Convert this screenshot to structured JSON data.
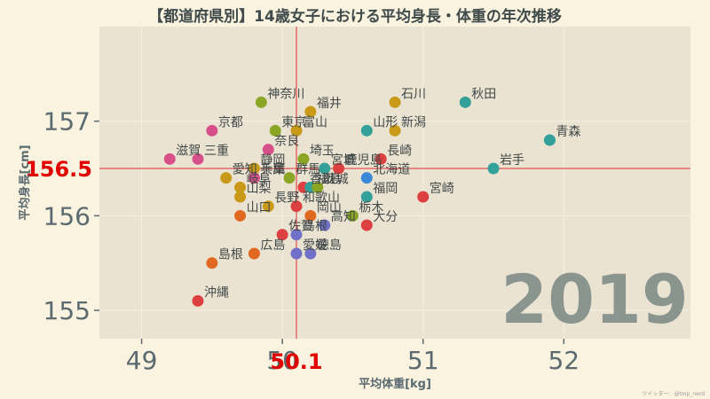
{
  "chart_data": {
    "type": "scatter",
    "title": "【都道府県別】14歳女子における平均身長・体重の年次推移",
    "xlabel": "平均体重[kg]",
    "ylabel": "平均身長[cm]",
    "year": "2019",
    "xlim": [
      48.7,
      52.9
    ],
    "ylim": [
      154.7,
      158.0
    ],
    "x_ticks": [
      49,
      50,
      51,
      52
    ],
    "y_ticks": [
      155,
      156,
      157
    ],
    "reference": {
      "x": 50.1,
      "x_label": "50.1",
      "y": 156.5,
      "y_label": "156.5"
    },
    "points": [
      {
        "name": "神奈川",
        "x": 49.85,
        "y": 157.2,
        "color": "#8aa624"
      },
      {
        "name": "石川",
        "x": 50.8,
        "y": 157.2,
        "color": "#c89a18"
      },
      {
        "name": "秋田",
        "x": 51.3,
        "y": 157.2,
        "color": "#33a09a"
      },
      {
        "name": "福井",
        "x": 50.2,
        "y": 157.1,
        "color": "#c89a18"
      },
      {
        "name": "京都",
        "x": 49.5,
        "y": 156.9,
        "color": "#d8508a"
      },
      {
        "name": "東京",
        "x": 49.95,
        "y": 156.9,
        "color": "#8aa624"
      },
      {
        "name": "富山",
        "x": 50.1,
        "y": 156.9,
        "color": "#c89a18"
      },
      {
        "name": "山形",
        "x": 50.6,
        "y": 156.9,
        "color": "#33a09a"
      },
      {
        "name": "新潟",
        "x": 50.8,
        "y": 156.9,
        "color": "#c89a18"
      },
      {
        "name": "青森",
        "x": 51.9,
        "y": 156.8,
        "color": "#33a09a"
      },
      {
        "name": "奈良",
        "x": 49.9,
        "y": 156.7,
        "color": "#d8508a"
      },
      {
        "name": "滋賀",
        "x": 49.2,
        "y": 156.6,
        "color": "#d8508a"
      },
      {
        "name": "三重",
        "x": 49.4,
        "y": 156.6,
        "color": "#d8508a"
      },
      {
        "name": "埼玉",
        "x": 50.15,
        "y": 156.6,
        "color": "#8aa624"
      },
      {
        "name": "長崎",
        "x": 50.7,
        "y": 156.6,
        "color": "#dc4040"
      },
      {
        "name": "静岡",
        "x": 49.8,
        "y": 156.5,
        "color": "#c89a18"
      },
      {
        "name": "宮城",
        "x": 50.3,
        "y": 156.5,
        "color": "#33a09a"
      },
      {
        "name": "鹿児島",
        "x": 50.4,
        "y": 156.5,
        "color": "#dc4040"
      },
      {
        "name": "岩手",
        "x": 51.5,
        "y": 156.5,
        "color": "#33a09a"
      },
      {
        "name": "愛知",
        "x": 49.6,
        "y": 156.4,
        "color": "#c89a18"
      },
      {
        "name": "千葉",
        "x": 49.8,
        "y": 156.4,
        "color": "#8aa624"
      },
      {
        "name": "兵庫",
        "x": 49.8,
        "y": 156.4,
        "color": "#d8508a"
      },
      {
        "name": "群馬",
        "x": 50.05,
        "y": 156.4,
        "color": "#8aa624"
      },
      {
        "name": "北海道",
        "x": 50.6,
        "y": 156.4,
        "color": "#3a88d8"
      },
      {
        "name": "岐阜",
        "x": 49.7,
        "y": 156.3,
        "color": "#c89a18"
      },
      {
        "name": "香川",
        "x": 50.15,
        "y": 156.3,
        "color": "#dc4040"
      },
      {
        "name": "福島",
        "x": 50.2,
        "y": 156.3,
        "color": "#33a09a"
      },
      {
        "name": "茨城",
        "x": 50.25,
        "y": 156.3,
        "color": "#8aa624"
      },
      {
        "name": "宮崎",
        "x": 51.0,
        "y": 156.2,
        "color": "#dc4040"
      },
      {
        "name": "山梨",
        "x": 49.7,
        "y": 156.2,
        "color": "#c89a18"
      },
      {
        "name": "福岡",
        "x": 50.6,
        "y": 156.2,
        "color": "#33a09a"
      },
      {
        "name": "山口",
        "x": 49.7,
        "y": 156.0,
        "color": "#e06820"
      },
      {
        "name": "長野",
        "x": 49.9,
        "y": 156.1,
        "color": "#c89a18"
      },
      {
        "name": "和歌山",
        "x": 50.1,
        "y": 156.1,
        "color": "#dc4040"
      },
      {
        "name": "岡山",
        "x": 50.2,
        "y": 156.0,
        "color": "#e06820"
      },
      {
        "name": "栃木",
        "x": 50.5,
        "y": 156.0,
        "color": "#8aa624"
      },
      {
        "name": "高知",
        "x": 50.3,
        "y": 155.9,
        "color": "#7070c8"
      },
      {
        "name": "大分",
        "x": 50.6,
        "y": 155.9,
        "color": "#dc4040"
      },
      {
        "name": "佐賀",
        "x": 50.0,
        "y": 155.8,
        "color": "#dc4040"
      },
      {
        "name": "島根",
        "x": 50.1,
        "y": 155.8,
        "color": "#7070c8"
      },
      {
        "name": "広島",
        "x": 49.8,
        "y": 155.6,
        "color": "#e06820"
      },
      {
        "name": "愛媛",
        "x": 50.1,
        "y": 155.6,
        "color": "#7070c8"
      },
      {
        "name": "徳島",
        "x": 50.2,
        "y": 155.6,
        "color": "#7070c8"
      },
      {
        "name": "島根",
        "x": 49.5,
        "y": 155.5,
        "color": "#e06820"
      },
      {
        "name": "沖縄",
        "x": 49.4,
        "y": 155.1,
        "color": "#dc4040"
      }
    ],
    "colors": {
      "background": "#faf3df",
      "plot_background": "#ebe3d2",
      "reference_line": "#e03030",
      "reference_label": "#e00000",
      "axis_text": "#5a6a70",
      "point_label": "#404848",
      "watermark": "#8a9590"
    }
  },
  "credit": "ツイッター：@tmp_nerd"
}
